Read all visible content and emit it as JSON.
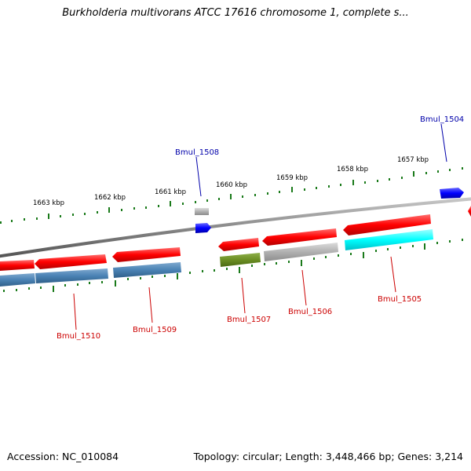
{
  "title": "Burkholderia multivorans ATCC 17616 chromosome 1, complete s...",
  "footer": {
    "accession_label": "Accession:",
    "accession": "NC_010084",
    "topology_label": "Topology:",
    "topology": "circular",
    "length_label": "Length:",
    "length": "3,448,466 bp",
    "genes_label": "Genes:",
    "genes": "3,214"
  },
  "scale": {
    "unit": "kbp",
    "ticks": [
      "1663 kbp",
      "1662 kbp",
      "1661 kbp",
      "1660 kbp",
      "1659 kbp",
      "1658 kbp",
      "1657 kbp"
    ]
  },
  "genes": [
    {
      "name": "Bmul_1504",
      "label_color": "#0000aa"
    },
    {
      "name": "Bmul_1505",
      "label_color": "#cc0000"
    },
    {
      "name": "Bmul_1506",
      "label_color": "#cc0000"
    },
    {
      "name": "Bmul_1507",
      "label_color": "#cc0000"
    },
    {
      "name": "Bmul_1508",
      "label_color": "#0000aa"
    },
    {
      "name": "Bmul_1509",
      "label_color": "#cc0000"
    },
    {
      "name": "Bmul_1510",
      "label_color": "#cc0000"
    }
  ],
  "colors": {
    "cds": "#ff0000",
    "gene_forward": "#0000ff",
    "backbone": "#8a8a8a",
    "tick": "#1a7a1a",
    "cog_blue": "#4a82b4",
    "cog_olive": "#6b8e23",
    "cog_gray": "#b0b0b0",
    "cog_cyan": "#00ffff"
  }
}
